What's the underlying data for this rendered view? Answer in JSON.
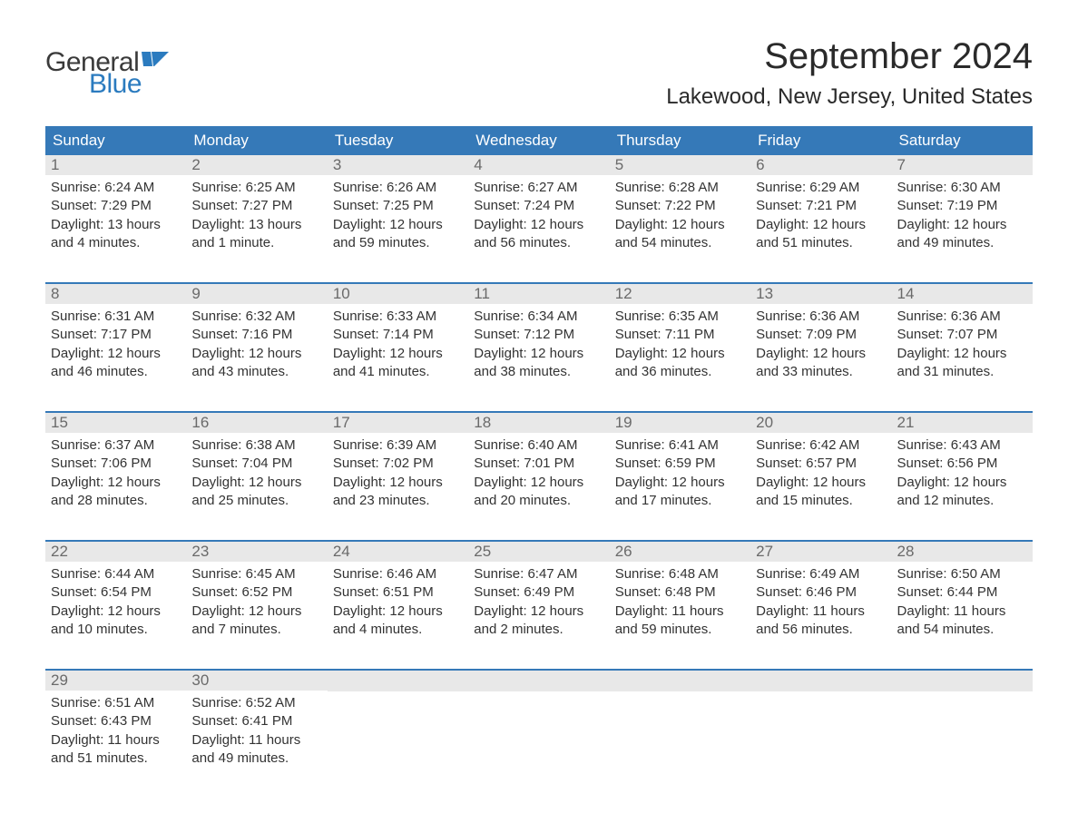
{
  "logo": {
    "general": "General",
    "blue": "Blue",
    "flag_color": "#2b7bbf"
  },
  "title": "September 2024",
  "location": "Lakewood, New Jersey, United States",
  "header_bg": "#3579b8",
  "header_fg": "#ffffff",
  "daybar_bg": "#e8e8e8",
  "daybar_fg": "#6a6a6a",
  "week_border": "#3579b8",
  "text_color": "#333333",
  "bg_color": "#ffffff",
  "day_headers": [
    "Sunday",
    "Monday",
    "Tuesday",
    "Wednesday",
    "Thursday",
    "Friday",
    "Saturday"
  ],
  "weeks": [
    [
      {
        "n": "1",
        "sr": "Sunrise: 6:24 AM",
        "ss": "Sunset: 7:29 PM",
        "d1": "Daylight: 13 hours",
        "d2": "and 4 minutes."
      },
      {
        "n": "2",
        "sr": "Sunrise: 6:25 AM",
        "ss": "Sunset: 7:27 PM",
        "d1": "Daylight: 13 hours",
        "d2": "and 1 minute."
      },
      {
        "n": "3",
        "sr": "Sunrise: 6:26 AM",
        "ss": "Sunset: 7:25 PM",
        "d1": "Daylight: 12 hours",
        "d2": "and 59 minutes."
      },
      {
        "n": "4",
        "sr": "Sunrise: 6:27 AM",
        "ss": "Sunset: 7:24 PM",
        "d1": "Daylight: 12 hours",
        "d2": "and 56 minutes."
      },
      {
        "n": "5",
        "sr": "Sunrise: 6:28 AM",
        "ss": "Sunset: 7:22 PM",
        "d1": "Daylight: 12 hours",
        "d2": "and 54 minutes."
      },
      {
        "n": "6",
        "sr": "Sunrise: 6:29 AM",
        "ss": "Sunset: 7:21 PM",
        "d1": "Daylight: 12 hours",
        "d2": "and 51 minutes."
      },
      {
        "n": "7",
        "sr": "Sunrise: 6:30 AM",
        "ss": "Sunset: 7:19 PM",
        "d1": "Daylight: 12 hours",
        "d2": "and 49 minutes."
      }
    ],
    [
      {
        "n": "8",
        "sr": "Sunrise: 6:31 AM",
        "ss": "Sunset: 7:17 PM",
        "d1": "Daylight: 12 hours",
        "d2": "and 46 minutes."
      },
      {
        "n": "9",
        "sr": "Sunrise: 6:32 AM",
        "ss": "Sunset: 7:16 PM",
        "d1": "Daylight: 12 hours",
        "d2": "and 43 minutes."
      },
      {
        "n": "10",
        "sr": "Sunrise: 6:33 AM",
        "ss": "Sunset: 7:14 PM",
        "d1": "Daylight: 12 hours",
        "d2": "and 41 minutes."
      },
      {
        "n": "11",
        "sr": "Sunrise: 6:34 AM",
        "ss": "Sunset: 7:12 PM",
        "d1": "Daylight: 12 hours",
        "d2": "and 38 minutes."
      },
      {
        "n": "12",
        "sr": "Sunrise: 6:35 AM",
        "ss": "Sunset: 7:11 PM",
        "d1": "Daylight: 12 hours",
        "d2": "and 36 minutes."
      },
      {
        "n": "13",
        "sr": "Sunrise: 6:36 AM",
        "ss": "Sunset: 7:09 PM",
        "d1": "Daylight: 12 hours",
        "d2": "and 33 minutes."
      },
      {
        "n": "14",
        "sr": "Sunrise: 6:36 AM",
        "ss": "Sunset: 7:07 PM",
        "d1": "Daylight: 12 hours",
        "d2": "and 31 minutes."
      }
    ],
    [
      {
        "n": "15",
        "sr": "Sunrise: 6:37 AM",
        "ss": "Sunset: 7:06 PM",
        "d1": "Daylight: 12 hours",
        "d2": "and 28 minutes."
      },
      {
        "n": "16",
        "sr": "Sunrise: 6:38 AM",
        "ss": "Sunset: 7:04 PM",
        "d1": "Daylight: 12 hours",
        "d2": "and 25 minutes."
      },
      {
        "n": "17",
        "sr": "Sunrise: 6:39 AM",
        "ss": "Sunset: 7:02 PM",
        "d1": "Daylight: 12 hours",
        "d2": "and 23 minutes."
      },
      {
        "n": "18",
        "sr": "Sunrise: 6:40 AM",
        "ss": "Sunset: 7:01 PM",
        "d1": "Daylight: 12 hours",
        "d2": "and 20 minutes."
      },
      {
        "n": "19",
        "sr": "Sunrise: 6:41 AM",
        "ss": "Sunset: 6:59 PM",
        "d1": "Daylight: 12 hours",
        "d2": "and 17 minutes."
      },
      {
        "n": "20",
        "sr": "Sunrise: 6:42 AM",
        "ss": "Sunset: 6:57 PM",
        "d1": "Daylight: 12 hours",
        "d2": "and 15 minutes."
      },
      {
        "n": "21",
        "sr": "Sunrise: 6:43 AM",
        "ss": "Sunset: 6:56 PM",
        "d1": "Daylight: 12 hours",
        "d2": "and 12 minutes."
      }
    ],
    [
      {
        "n": "22",
        "sr": "Sunrise: 6:44 AM",
        "ss": "Sunset: 6:54 PM",
        "d1": "Daylight: 12 hours",
        "d2": "and 10 minutes."
      },
      {
        "n": "23",
        "sr": "Sunrise: 6:45 AM",
        "ss": "Sunset: 6:52 PM",
        "d1": "Daylight: 12 hours",
        "d2": "and 7 minutes."
      },
      {
        "n": "24",
        "sr": "Sunrise: 6:46 AM",
        "ss": "Sunset: 6:51 PM",
        "d1": "Daylight: 12 hours",
        "d2": "and 4 minutes."
      },
      {
        "n": "25",
        "sr": "Sunrise: 6:47 AM",
        "ss": "Sunset: 6:49 PM",
        "d1": "Daylight: 12 hours",
        "d2": "and 2 minutes."
      },
      {
        "n": "26",
        "sr": "Sunrise: 6:48 AM",
        "ss": "Sunset: 6:48 PM",
        "d1": "Daylight: 11 hours",
        "d2": "and 59 minutes."
      },
      {
        "n": "27",
        "sr": "Sunrise: 6:49 AM",
        "ss": "Sunset: 6:46 PM",
        "d1": "Daylight: 11 hours",
        "d2": "and 56 minutes."
      },
      {
        "n": "28",
        "sr": "Sunrise: 6:50 AM",
        "ss": "Sunset: 6:44 PM",
        "d1": "Daylight: 11 hours",
        "d2": "and 54 minutes."
      }
    ],
    [
      {
        "n": "29",
        "sr": "Sunrise: 6:51 AM",
        "ss": "Sunset: 6:43 PM",
        "d1": "Daylight: 11 hours",
        "d2": "and 51 minutes."
      },
      {
        "n": "30",
        "sr": "Sunrise: 6:52 AM",
        "ss": "Sunset: 6:41 PM",
        "d1": "Daylight: 11 hours",
        "d2": "and 49 minutes."
      },
      null,
      null,
      null,
      null,
      null
    ]
  ]
}
